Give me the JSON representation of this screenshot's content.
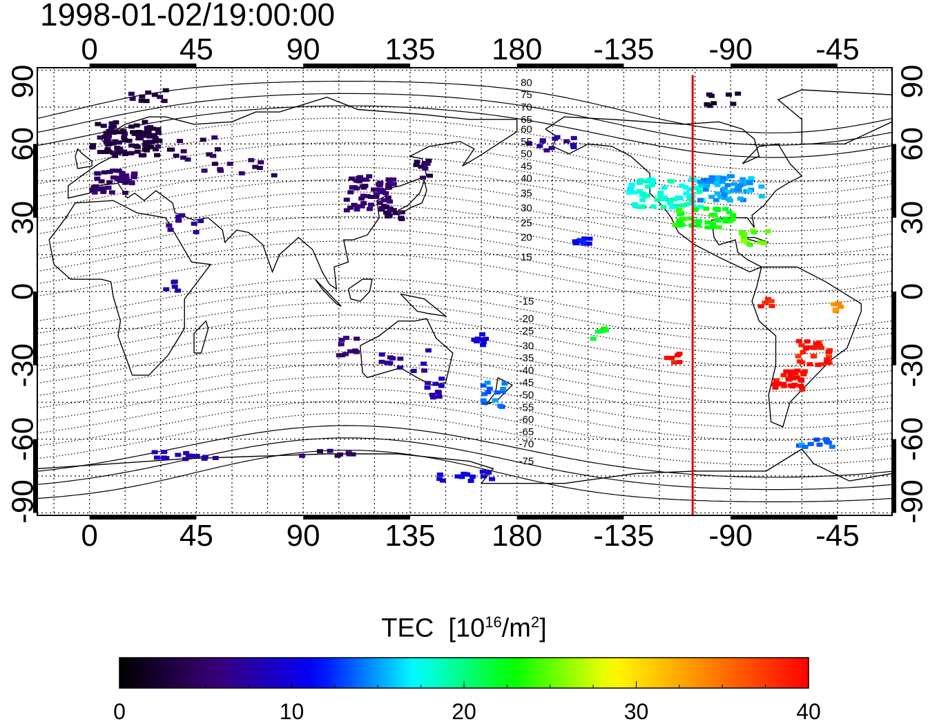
{
  "timestamp": "1998-01-02/19:00:00",
  "map": {
    "lon_ticks": [
      {
        "lon": 0,
        "label": "0"
      },
      {
        "lon": 45,
        "label": "45"
      },
      {
        "lon": 90,
        "label": "90"
      },
      {
        "lon": 135,
        "label": "135"
      },
      {
        "lon": 180,
        "label": "180"
      },
      {
        "lon": 225,
        "label": "-135"
      },
      {
        "lon": 270,
        "label": "-90"
      },
      {
        "lon": 315,
        "label": "-45"
      }
    ],
    "lat_ticks": [
      {
        "lat": 90,
        "label": "90"
      },
      {
        "lat": 60,
        "label": "60"
      },
      {
        "lat": 30,
        "label": "30"
      },
      {
        "lat": 0,
        "label": "0"
      },
      {
        "lat": -30,
        "label": "-30"
      },
      {
        "lat": -60,
        "label": "-60"
      },
      {
        "lat": -90,
        "label": "-90"
      }
    ],
    "lon_range": [
      -22,
      338
    ],
    "lat_range": [
      -91,
      91
    ],
    "grid": "dotted, every 15 degrees",
    "terminator_lon": 254,
    "terminator_color": "#dd0000",
    "magnetic_latitude_labels": [
      {
        "label": "80",
        "lat": 85
      },
      {
        "label": "75",
        "lat": 80
      },
      {
        "label": "70",
        "lat": 75
      },
      {
        "label": "65",
        "lat": 70
      },
      {
        "label": "60",
        "lat": 66
      },
      {
        "label": "55",
        "lat": 61
      },
      {
        "label": "50",
        "lat": 56
      },
      {
        "label": "45",
        "lat": 51
      },
      {
        "label": "40",
        "lat": 46
      },
      {
        "label": "35",
        "lat": 40
      },
      {
        "label": "30",
        "lat": 34
      },
      {
        "label": "25",
        "lat": 28
      },
      {
        "label": "20",
        "lat": 22
      },
      {
        "label": "15",
        "lat": 14
      },
      {
        "label": "-15",
        "lat": -4
      },
      {
        "label": "-20",
        "lat": -11
      },
      {
        "label": "-25",
        "lat": -16
      },
      {
        "label": "-30",
        "lat": -22
      },
      {
        "label": "-35",
        "lat": -27
      },
      {
        "label": "-40",
        "lat": -32
      },
      {
        "label": "-45",
        "lat": -37
      },
      {
        "label": "-50",
        "lat": -42
      },
      {
        "label": "-55",
        "lat": -47
      },
      {
        "label": "-60",
        "lat": -52
      },
      {
        "label": "-65",
        "lat": -57
      },
      {
        "label": "-70",
        "lat": -62
      },
      {
        "label": "-75",
        "lat": -69
      }
    ]
  },
  "tec_clusters": [
    {
      "lon": 15,
      "lat": 62,
      "w": 28,
      "h": 14,
      "tec": 3,
      "n": 90
    },
    {
      "lon": 10,
      "lat": 45,
      "w": 18,
      "h": 10,
      "tec": 5,
      "n": 40
    },
    {
      "lon": 25,
      "lat": 80,
      "w": 16,
      "h": 6,
      "tec": 3,
      "n": 10
    },
    {
      "lon": 40,
      "lat": 58,
      "w": 30,
      "h": 10,
      "tec": 4,
      "n": 14
    },
    {
      "lon": 60,
      "lat": 50,
      "w": 40,
      "h": 8,
      "tec": 5,
      "n": 12
    },
    {
      "lon": 40,
      "lat": 28,
      "w": 14,
      "h": 8,
      "tec": 7,
      "n": 8
    },
    {
      "lon": 35,
      "lat": 2,
      "w": 6,
      "h": 6,
      "tec": 8,
      "n": 5
    },
    {
      "lon": 118,
      "lat": 40,
      "w": 20,
      "h": 14,
      "tec": 5,
      "n": 60
    },
    {
      "lon": 128,
      "lat": 32,
      "w": 8,
      "h": 6,
      "tec": 4,
      "n": 10
    },
    {
      "lon": 140,
      "lat": 50,
      "w": 14,
      "h": 8,
      "tec": 4,
      "n": 10
    },
    {
      "lon": 110,
      "lat": -22,
      "w": 10,
      "h": 8,
      "tec": 6,
      "n": 10
    },
    {
      "lon": 133,
      "lat": -28,
      "w": 22,
      "h": 14,
      "tec": 7,
      "n": 12
    },
    {
      "lon": 146,
      "lat": -40,
      "w": 8,
      "h": 10,
      "tec": 8,
      "n": 10
    },
    {
      "lon": 170,
      "lat": -42,
      "w": 10,
      "h": 10,
      "tec": 14,
      "n": 14
    },
    {
      "lon": 164,
      "lat": -20,
      "w": 6,
      "h": 6,
      "tec": 10,
      "n": 8
    },
    {
      "lon": 158,
      "lat": -75,
      "w": 24,
      "h": 4,
      "tec": 10,
      "n": 14
    },
    {
      "lon": 40,
      "lat": -67,
      "w": 30,
      "h": 4,
      "tec": 8,
      "n": 14
    },
    {
      "lon": 100,
      "lat": -66,
      "w": 26,
      "h": 3,
      "tec": 5,
      "n": 8
    },
    {
      "lon": 195,
      "lat": 60,
      "w": 20,
      "h": 6,
      "tec": 7,
      "n": 12
    },
    {
      "lon": 208,
      "lat": 20,
      "w": 8,
      "h": 4,
      "tec": 11,
      "n": 10
    },
    {
      "lon": 243,
      "lat": 40,
      "w": 32,
      "h": 12,
      "tec": 18,
      "n": 70
    },
    {
      "lon": 270,
      "lat": 42,
      "w": 26,
      "h": 10,
      "tec": 15,
      "n": 60
    },
    {
      "lon": 258,
      "lat": 30,
      "w": 26,
      "h": 8,
      "tec": 23,
      "n": 40
    },
    {
      "lon": 280,
      "lat": 22,
      "w": 12,
      "h": 6,
      "tec": 25,
      "n": 12
    },
    {
      "lon": 285,
      "lat": -4,
      "w": 6,
      "h": 4,
      "tec": 39,
      "n": 6
    },
    {
      "lon": 305,
      "lat": -25,
      "w": 14,
      "h": 10,
      "tec": 39,
      "n": 30
    },
    {
      "lon": 295,
      "lat": -36,
      "w": 14,
      "h": 8,
      "tec": 40,
      "n": 30
    },
    {
      "lon": 246,
      "lat": -27,
      "w": 6,
      "h": 4,
      "tec": 40,
      "n": 6
    },
    {
      "lon": 314,
      "lat": -5,
      "w": 6,
      "h": 6,
      "tec": 34,
      "n": 6
    },
    {
      "lon": 305,
      "lat": -62,
      "w": 16,
      "h": 4,
      "tec": 14,
      "n": 10
    },
    {
      "lon": 270,
      "lat": 78,
      "w": 22,
      "h": 6,
      "tec": 2,
      "n": 8
    },
    {
      "lon": 215,
      "lat": -17,
      "w": 6,
      "h": 6,
      "tec": 22,
      "n": 6
    }
  ],
  "colorbar": {
    "title": "TEC",
    "unit_open": "[10",
    "unit_sup1": "16",
    "unit_mid": "/m",
    "unit_sup2": "2",
    "unit_close": "]",
    "min": 0,
    "max": 40,
    "ticks": [
      {
        "value": 0,
        "label": "0"
      },
      {
        "value": 10,
        "label": "10"
      },
      {
        "value": 20,
        "label": "20"
      },
      {
        "value": 30,
        "label": "30"
      },
      {
        "value": 40,
        "label": "40"
      }
    ],
    "stops": [
      "#000000",
      "#3a007a",
      "#0000ff",
      "#00ffff",
      "#00ff00",
      "#ffff00",
      "#ff8000",
      "#ff0000"
    ]
  }
}
